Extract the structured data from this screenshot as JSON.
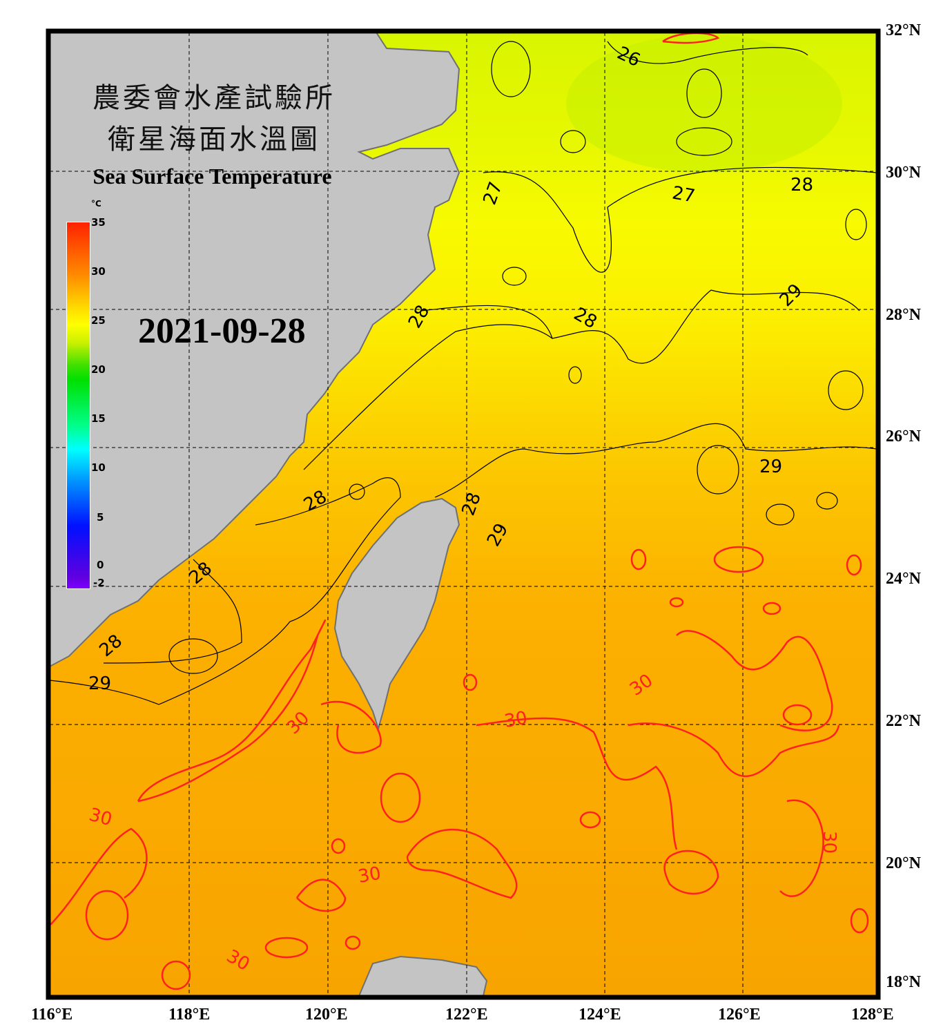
{
  "title": {
    "line1": "農委會水產試驗所",
    "line2": "衛星海面水溫圖",
    "english": "Sea Surface Temperature"
  },
  "date": "2021-09-28",
  "colorbar": {
    "unit": "°C",
    "ticks": [
      "35",
      "30",
      "25",
      "20",
      "15",
      "10",
      "5",
      "0",
      "-2"
    ],
    "range": [
      -2,
      35
    ],
    "colors": [
      "#8000ff",
      "#0010ff",
      "#00ffff",
      "#00e000",
      "#ffff00",
      "#ff8800",
      "#ff2200"
    ]
  },
  "axes": {
    "lon_labels": [
      "116°E",
      "118°E",
      "120°E",
      "122°E",
      "124°E",
      "126°E",
      "128°E"
    ],
    "lat_labels": [
      "32°N",
      "30°N",
      "28°N",
      "26°N",
      "24°N",
      "22°N",
      "20°N",
      "18°N"
    ]
  },
  "contours": {
    "labels": [
      "26",
      "27",
      "27",
      "28",
      "28",
      "28",
      "28",
      "28",
      "28",
      "28",
      "29",
      "29",
      "29",
      "29",
      "30",
      "30",
      "30",
      "30",
      "30",
      "30",
      "30"
    ],
    "normal_color": "#000000",
    "highlight_color": "#ff2020",
    "highlight_value": "30"
  },
  "colors": {
    "land": "#c4c4c4",
    "coast": "#707070",
    "frame": "#000000"
  }
}
